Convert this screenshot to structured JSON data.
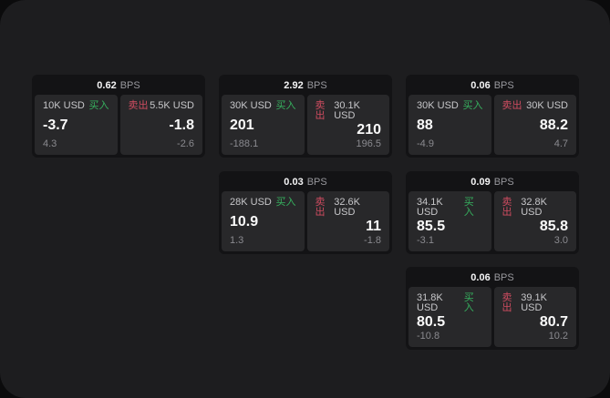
{
  "labels": {
    "bps_unit": "BPS",
    "buy": "买入",
    "sell": "卖出"
  },
  "colors": {
    "window_bg": "#1d1d1f",
    "card_bg": "#131315",
    "panel_bg": "#28282a",
    "buy_green": "#36b05e",
    "sell_red": "#cf4c60"
  },
  "cards": [
    {
      "bps": "0.62",
      "buy": {
        "amount": "10K USD",
        "price": "-3.7",
        "change": "4.3"
      },
      "sell": {
        "amount": "5.5K USD",
        "price": "-1.8",
        "change": "-2.6"
      }
    },
    {
      "bps": "2.92",
      "buy": {
        "amount": "30K USD",
        "price": "201",
        "change": "-188.1"
      },
      "sell": {
        "amount": "30.1K USD",
        "price": "210",
        "change": "196.5"
      }
    },
    {
      "bps": "0.06",
      "buy": {
        "amount": "30K USD",
        "price": "88",
        "change": "-4.9"
      },
      "sell": {
        "amount": "30K USD",
        "price": "88.2",
        "change": "4.7"
      }
    },
    {
      "bps": "0.03",
      "buy": {
        "amount": "28K USD",
        "price": "10.9",
        "change": "1.3"
      },
      "sell": {
        "amount": "32.6K USD",
        "price": "11",
        "change": "-1.8"
      }
    },
    {
      "bps": "0.09",
      "buy": {
        "amount": "34.1K USD",
        "price": "85.5",
        "change": "-3.1"
      },
      "sell": {
        "amount": "32.8K USD",
        "price": "85.8",
        "change": "3.0"
      }
    },
    {
      "bps": "0.06",
      "buy": {
        "amount": "31.8K USD",
        "price": "80.5",
        "change": "-10.8"
      },
      "sell": {
        "amount": "39.1K USD",
        "price": "80.7",
        "change": "10.2"
      }
    }
  ]
}
